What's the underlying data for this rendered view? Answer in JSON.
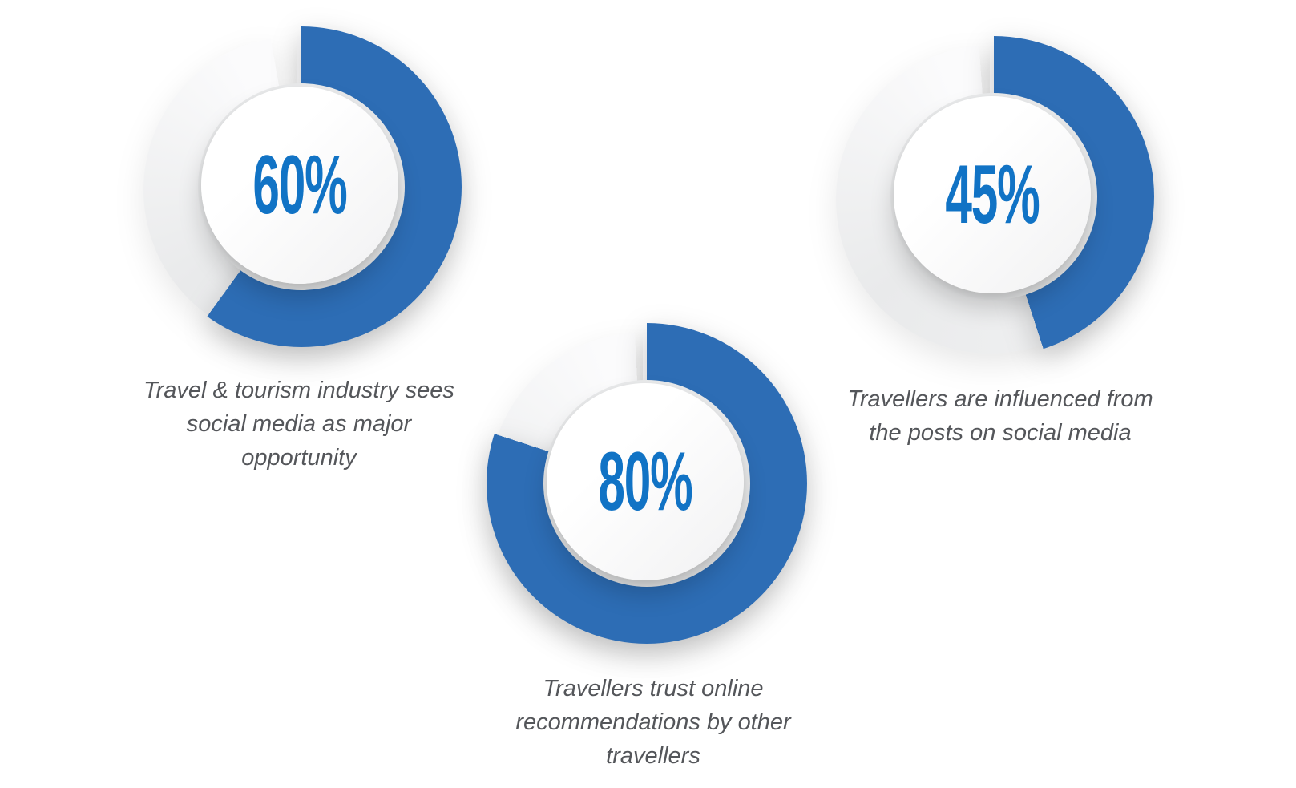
{
  "colors": {
    "background": "#ffffff",
    "arc_blue": "#2d6db5",
    "value_blue": "#1173c5",
    "track_gray": "#e9eaeb",
    "track_gray_light": "#fbfbfc",
    "hole_rim_gray": "#e9eaeb",
    "inner_white": "#ffffff",
    "inner_white_shade": "#f1f1f2",
    "caption_gray": "#54565a"
  },
  "chart_data": [
    {
      "type": "pie",
      "variant": "donut",
      "value": 60,
      "unit": "%",
      "label": "60%",
      "start_angle_deg": 0,
      "direction": "clockwise",
      "caption": "Travel & tourism industry sees social media as major opportunity",
      "caption_lines": [
        "Travel & tourism industry sees",
        "social media as major",
        "opportunity"
      ],
      "segments": [
        {
          "name": "filled",
          "value": 60,
          "color": "#2d6db5"
        },
        {
          "name": "remainder",
          "value": 40,
          "color": "#e9eaeb"
        }
      ]
    },
    {
      "type": "pie",
      "variant": "donut",
      "value": 80,
      "unit": "%",
      "label": "80%",
      "start_angle_deg": 0,
      "direction": "clockwise",
      "caption": "Travellers trust online recommendations by other travellers",
      "caption_lines": [
        "Travellers trust online",
        "recommendations by other",
        "travellers"
      ],
      "segments": [
        {
          "name": "filled",
          "value": 80,
          "color": "#2d6db5"
        },
        {
          "name": "remainder",
          "value": 20,
          "color": "#e9eaeb"
        }
      ]
    },
    {
      "type": "pie",
      "variant": "donut",
      "value": 45,
      "unit": "%",
      "label": "45%",
      "start_angle_deg": 0,
      "direction": "clockwise",
      "caption": "Travellers are influenced from the posts on social media",
      "caption_lines": [
        "Travellers are influenced from",
        "the posts on social media"
      ],
      "segments": [
        {
          "name": "filled",
          "value": 45,
          "color": "#2d6db5"
        },
        {
          "name": "remainder",
          "value": 55,
          "color": "#e9eaeb"
        }
      ]
    }
  ]
}
